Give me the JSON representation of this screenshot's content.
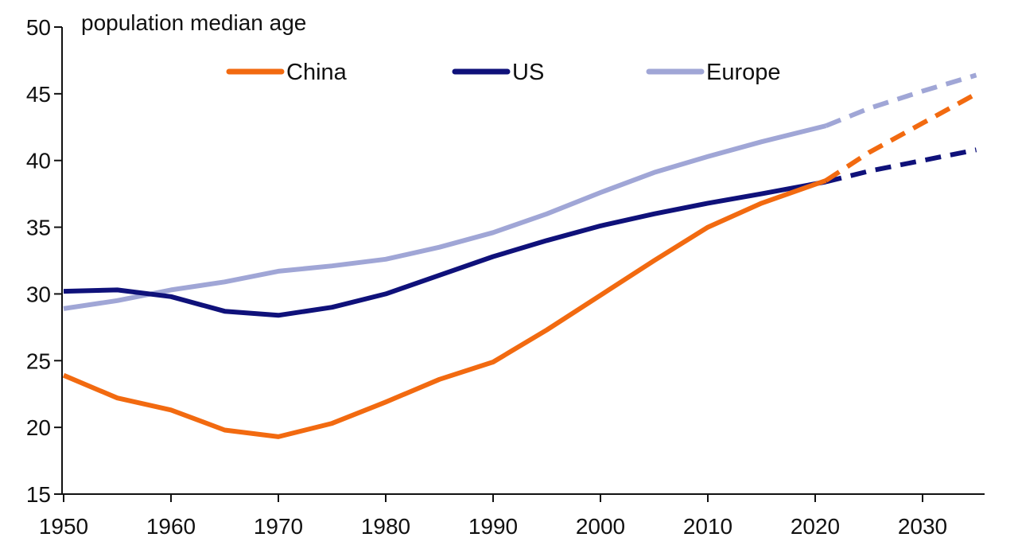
{
  "chart_data": {
    "type": "line",
    "title": "",
    "ylabel": "population median age",
    "xlabel": "",
    "xlim": [
      1950,
      2035
    ],
    "ylim": [
      15,
      50
    ],
    "x_ticks": [
      "1950",
      "1960",
      "1970",
      "1980",
      "1990",
      "2000",
      "2010",
      "2020",
      "2030"
    ],
    "y_ticks": [
      "15",
      "20",
      "25",
      "30",
      "35",
      "40",
      "45",
      "50"
    ],
    "grid": false,
    "legend_position": "top-center",
    "projection_start": 2021,
    "series": [
      {
        "name": "China",
        "color": "#f26a10",
        "x": [
          1950,
          1955,
          1960,
          1965,
          1970,
          1975,
          1980,
          1985,
          1990,
          1995,
          2000,
          2005,
          2010,
          2015,
          2021
        ],
        "values": [
          23.9,
          22.2,
          21.3,
          19.8,
          19.3,
          20.3,
          21.9,
          23.6,
          24.9,
          27.3,
          29.9,
          32.5,
          35.0,
          36.8,
          38.5
        ],
        "projection_x": [
          2021,
          2025,
          2030,
          2035
        ],
        "projection_values": [
          38.5,
          40.6,
          42.8,
          45.0
        ]
      },
      {
        "name": "US",
        "color": "#0f117a",
        "x": [
          1950,
          1955,
          1960,
          1965,
          1970,
          1975,
          1980,
          1985,
          1990,
          1995,
          2000,
          2005,
          2010,
          2015,
          2021
        ],
        "values": [
          30.2,
          30.3,
          29.8,
          28.7,
          28.4,
          29.0,
          30.0,
          31.4,
          32.8,
          34.0,
          35.1,
          36.0,
          36.8,
          37.5,
          38.4
        ],
        "projection_x": [
          2021,
          2025,
          2030,
          2035
        ],
        "projection_values": [
          38.4,
          39.2,
          40.0,
          40.8
        ]
      },
      {
        "name": "Europe",
        "color": "#a0a6d6",
        "x": [
          1950,
          1955,
          1960,
          1965,
          1970,
          1975,
          1980,
          1985,
          1990,
          1995,
          2000,
          2005,
          2010,
          2015,
          2021
        ],
        "values": [
          28.9,
          29.5,
          30.3,
          30.9,
          31.7,
          32.1,
          32.6,
          33.5,
          34.6,
          36.0,
          37.6,
          39.1,
          40.3,
          41.4,
          42.6
        ],
        "projection_x": [
          2021,
          2025,
          2030,
          2035
        ],
        "projection_values": [
          42.6,
          43.9,
          45.2,
          46.4
        ]
      }
    ]
  }
}
